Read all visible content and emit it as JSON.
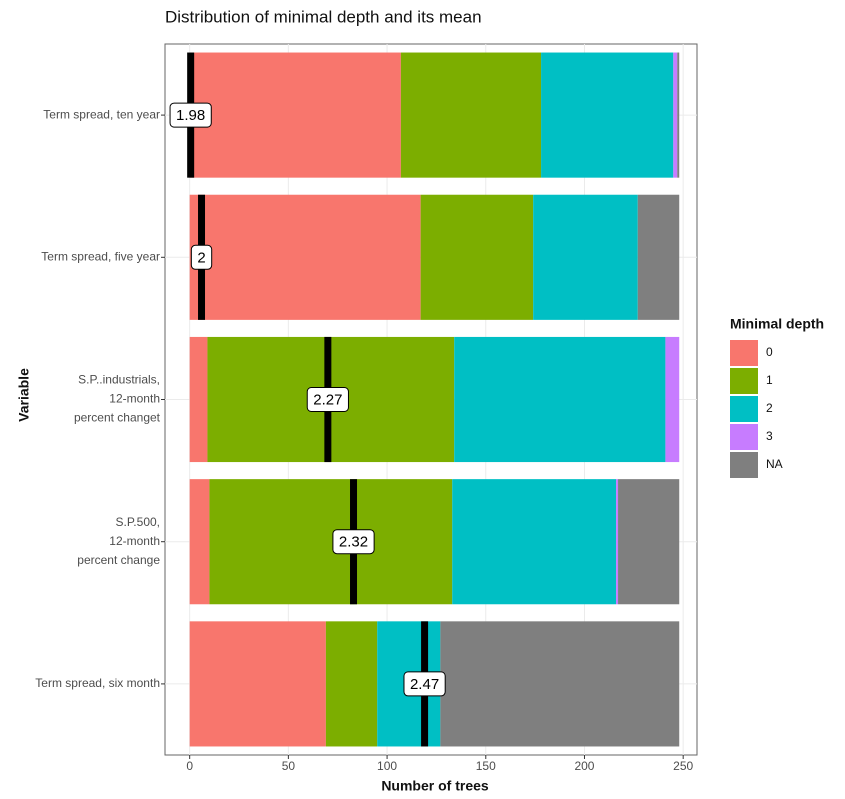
{
  "chart_data": {
    "type": "stacked_hbar",
    "title": "Distribution of minimal depth and its mean",
    "x_label": "Number of trees",
    "y_label": "Variable",
    "legend_title": "Minimal depth",
    "categories": [
      [
        "Term spread, ten year"
      ],
      [
        "Term spread, five year"
      ],
      [
        "S.P..industrials,",
        "12-month",
        "percent changet"
      ],
      [
        "S.P.500,",
        "12-month",
        "percent change"
      ],
      [
        "Term spread, six month"
      ]
    ],
    "series": [
      {
        "name": "0",
        "color": "#F8766D",
        "values": [
          107,
          117,
          9,
          10,
          69
        ]
      },
      {
        "name": "1",
        "color": "#7CAE00",
        "values": [
          71,
          57,
          125,
          123,
          26
        ]
      },
      {
        "name": "2",
        "color": "#00BFC4",
        "values": [
          67,
          53,
          107,
          83,
          32
        ]
      },
      {
        "name": "3",
        "color": "#C77CFF",
        "values": [
          2,
          0,
          7,
          1,
          0
        ]
      },
      {
        "name": "NA",
        "color": "#7F7F7F",
        "values": [
          1,
          21,
          0,
          31,
          121
        ]
      }
    ],
    "mean_positions": [
      0.5,
      6,
      70,
      83,
      119
    ],
    "mean_labels": [
      1.98,
      2,
      2.27,
      2.32,
      2.47
    ],
    "xlim": [
      -12.5,
      257
    ],
    "xticks": [
      0,
      50,
      100,
      150,
      200,
      250
    ],
    "grid": true
  }
}
